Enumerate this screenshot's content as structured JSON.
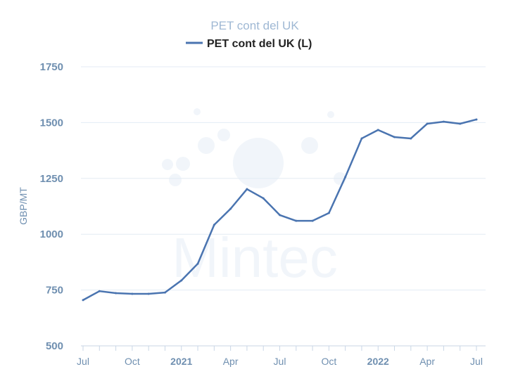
{
  "chart_data": {
    "type": "line",
    "title": "PET cont del UK",
    "legend": [
      "PET cont del UK (L)"
    ],
    "legend_position": "top-center",
    "ylabel": "GBP/MT",
    "xlabel": "",
    "ylim": [
      500,
      1750
    ],
    "yticks": [
      500,
      750,
      1000,
      1250,
      1500,
      1750
    ],
    "xtick_labels": [
      {
        "label": "Jul",
        "i": 0,
        "bold": false
      },
      {
        "label": "Oct",
        "i": 3,
        "bold": false
      },
      {
        "label": "2021",
        "i": 6,
        "bold": true
      },
      {
        "label": "Apr",
        "i": 9,
        "bold": false
      },
      {
        "label": "Jul",
        "i": 12,
        "bold": false
      },
      {
        "label": "Oct",
        "i": 15,
        "bold": false
      },
      {
        "label": "2022",
        "i": 18,
        "bold": true
      },
      {
        "label": "Apr",
        "i": 21,
        "bold": false
      },
      {
        "label": "Jul",
        "i": 24,
        "bold": false
      }
    ],
    "x": [
      "2020-07",
      "2020-08",
      "2020-09",
      "2020-10",
      "2020-11",
      "2020-12",
      "2021-01",
      "2021-02",
      "2021-03",
      "2021-04",
      "2021-05",
      "2021-06",
      "2021-07",
      "2021-08",
      "2021-09",
      "2021-10",
      "2021-11",
      "2021-12",
      "2022-01",
      "2022-02",
      "2022-03",
      "2022-04",
      "2022-05",
      "2022-06",
      "2022-07"
    ],
    "series": [
      {
        "name": "PET cont del UK (L)",
        "color": "#4a74b0",
        "values": [
          705,
          745,
          736,
          733,
          733,
          739,
          793,
          868,
          1042,
          1114,
          1202,
          1161,
          1086,
          1060,
          1060,
          1095,
          1256,
          1429,
          1467,
          1435,
          1429,
          1495,
          1504,
          1495,
          1514
        ]
      }
    ],
    "grid": true,
    "watermark": "Mintec"
  }
}
